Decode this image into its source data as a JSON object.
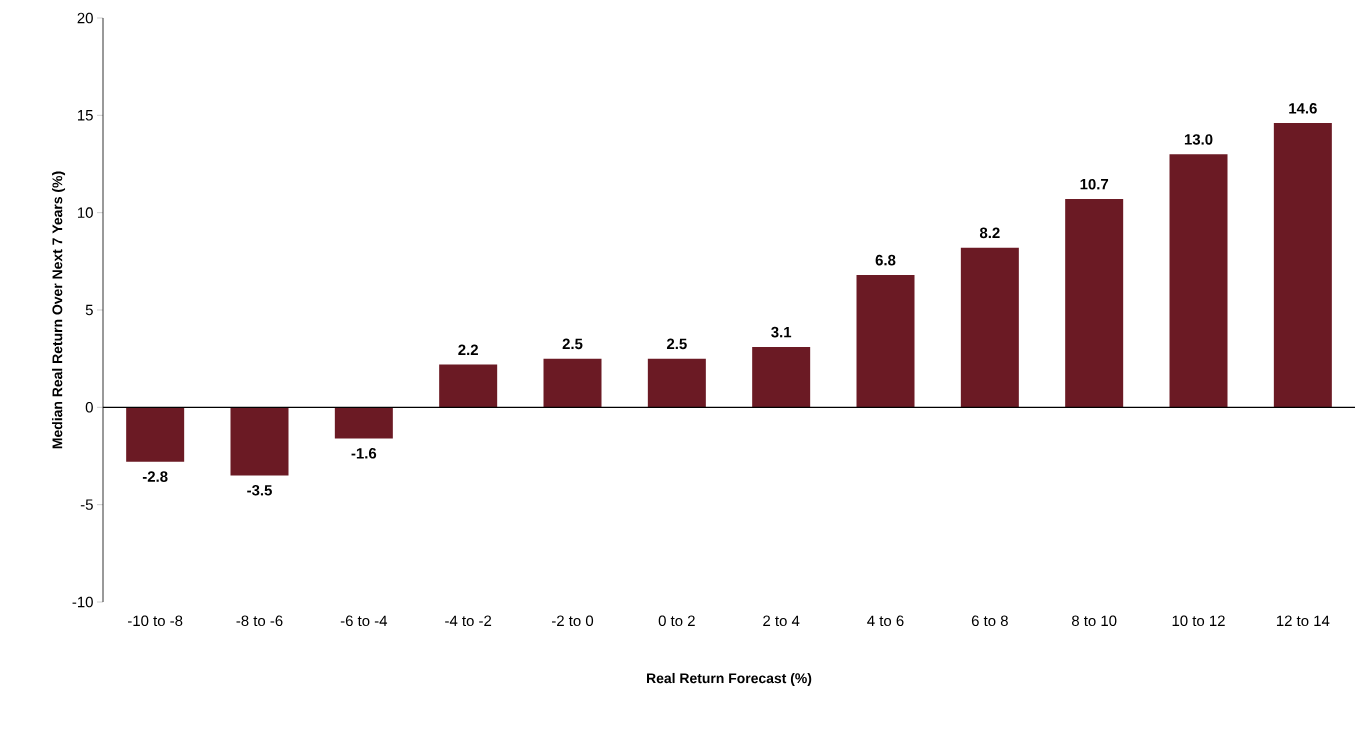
{
  "chart_data": {
    "type": "bar",
    "xlabel": "Real Return Forecast (%)",
    "ylabel": "Median Real Return Over Next 7 Years (%)",
    "categories": [
      "-10 to -8",
      "-8 to -6",
      "-6 to -4",
      "-4 to -2",
      "-2 to 0",
      "0 to 2",
      "2 to 4",
      "4 to 6",
      "6 to 8",
      "8 to 10",
      "10 to 12",
      "12 to 14"
    ],
    "values": [
      -2.8,
      -3.5,
      -1.6,
      2.2,
      2.5,
      2.5,
      3.1,
      6.8,
      8.2,
      10.7,
      13.0,
      14.6
    ],
    "value_labels": [
      "-2.8",
      "-3.5",
      "-1.6",
      "2.2",
      "2.5",
      "2.5",
      "3.1",
      "6.8",
      "8.2",
      "10.7",
      "13.0",
      "14.6"
    ],
    "color": "#6b1a24",
    "ylim": [
      -10,
      20
    ],
    "yticks": [
      -10,
      -5,
      0,
      5,
      10,
      15,
      20
    ]
  }
}
